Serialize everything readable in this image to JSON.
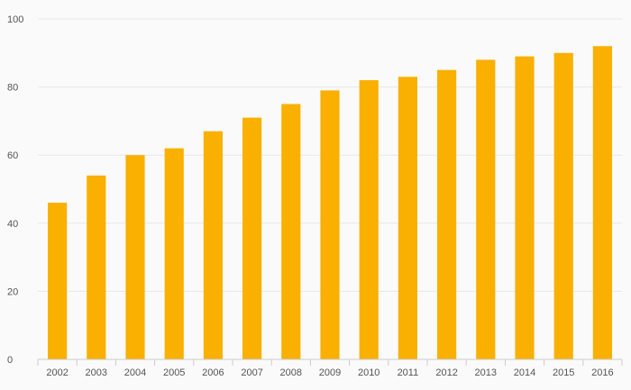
{
  "chart_data": {
    "type": "bar",
    "categories": [
      "2002",
      "2003",
      "2004",
      "2005",
      "2006",
      "2007",
      "2008",
      "2009",
      "2010",
      "2011",
      "2012",
      "2013",
      "2014",
      "2015",
      "2016"
    ],
    "values": [
      46,
      54,
      60,
      62,
      67,
      71,
      75,
      79,
      82,
      83,
      85,
      88,
      89,
      90,
      92
    ],
    "title": "",
    "xlabel": "",
    "ylabel": "",
    "ylim": [
      0,
      100
    ],
    "yticks": [
      "0",
      "20",
      "40",
      "60",
      "80",
      "100"
    ],
    "grid": true,
    "legend": "none",
    "colors": {
      "bar": "#f9b000",
      "grid": "#e8e8e8",
      "axis": "#cccccc",
      "text": "#555555",
      "background": "#fafafa"
    }
  }
}
